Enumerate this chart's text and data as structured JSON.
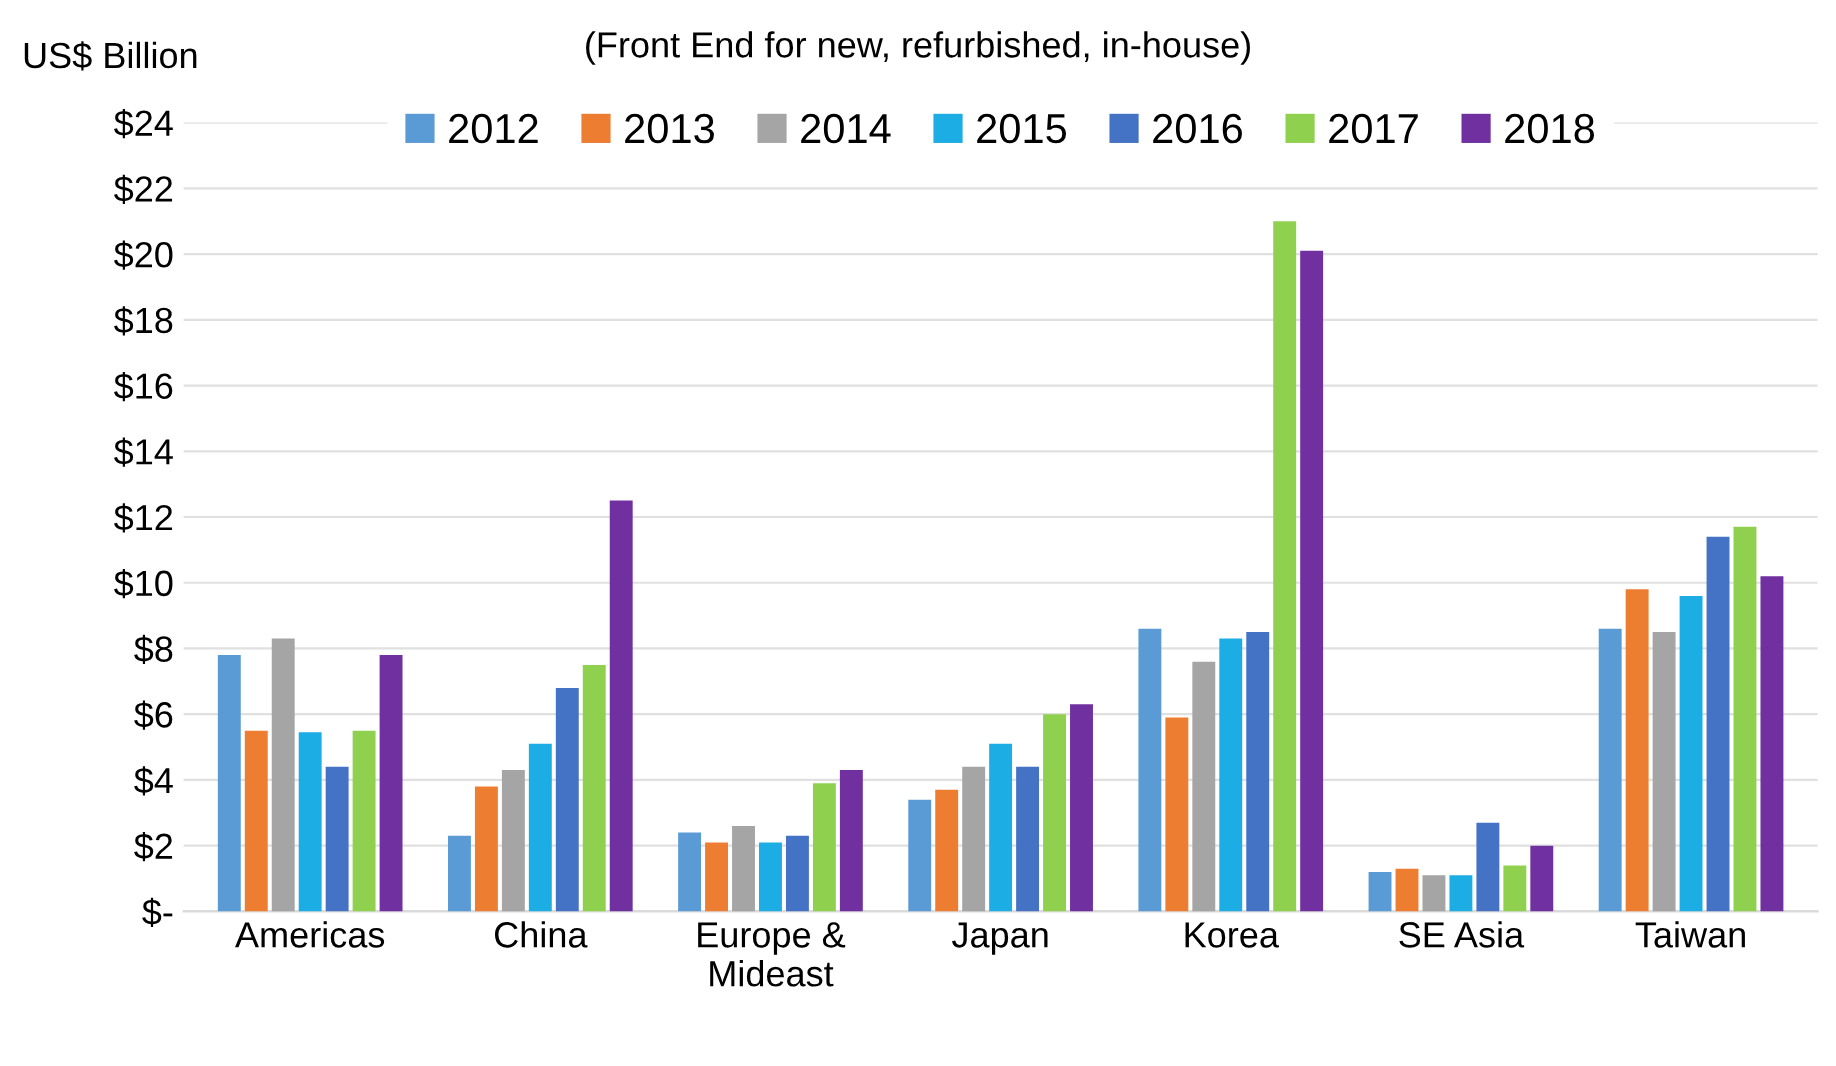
{
  "chart_data": {
    "type": "bar",
    "title": "(Front End for new, refurbished, in-house)",
    "ylabel": "US$ Billion",
    "categories": [
      "Americas",
      "China",
      "Europe &\nMideast",
      "Japan",
      "Korea",
      "SE Asia",
      "Taiwan"
    ],
    "series": [
      {
        "name": "2012",
        "color": "#5b9bd5",
        "values": [
          7.8,
          2.3,
          2.4,
          3.4,
          8.6,
          1.2,
          8.6
        ]
      },
      {
        "name": "2013",
        "color": "#ed7d31",
        "values": [
          5.5,
          3.8,
          2.1,
          3.7,
          5.9,
          1.3,
          9.8
        ]
      },
      {
        "name": "2014",
        "color": "#a5a5a5",
        "values": [
          8.3,
          4.3,
          2.6,
          4.4,
          7.6,
          1.1,
          8.5
        ]
      },
      {
        "name": "2015",
        "color": "#1cade4",
        "values": [
          5.45,
          5.1,
          2.1,
          5.1,
          8.3,
          1.1,
          9.6
        ]
      },
      {
        "name": "2016",
        "color": "#4472c4",
        "values": [
          4.4,
          6.8,
          2.3,
          4.4,
          8.5,
          2.7,
          11.4
        ]
      },
      {
        "name": "2017",
        "color": "#8fd14f",
        "values": [
          5.5,
          7.5,
          3.9,
          6.0,
          21.0,
          1.4,
          11.7
        ]
      },
      {
        "name": "2018",
        "color": "#7030a0",
        "values": [
          7.8,
          12.5,
          4.3,
          6.3,
          20.1,
          2.0,
          10.2
        ]
      }
    ],
    "ylim": [
      0,
      24
    ],
    "yticks": [
      {
        "value": 0,
        "label": "$-"
      },
      {
        "value": 2,
        "label": "$2"
      },
      {
        "value": 4,
        "label": "$4"
      },
      {
        "value": 6,
        "label": "$6"
      },
      {
        "value": 8,
        "label": "$8"
      },
      {
        "value": 10,
        "label": "$10"
      },
      {
        "value": 12,
        "label": "$12"
      },
      {
        "value": 14,
        "label": "$14"
      },
      {
        "value": 16,
        "label": "$16"
      },
      {
        "value": 18,
        "label": "$18"
      },
      {
        "value": 20,
        "label": "$20"
      },
      {
        "value": 22,
        "label": "$22"
      },
      {
        "value": 24,
        "label": "$24"
      }
    ],
    "grid": "y",
    "legend": "top"
  }
}
